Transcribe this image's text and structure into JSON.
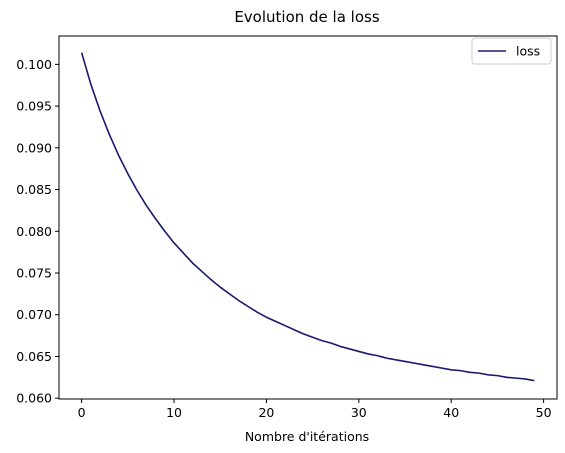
{
  "chart_data": {
    "type": "line",
    "title": "Evolution de la loss",
    "xlabel": "Nombre d'itérations",
    "ylabel": "",
    "xlim": [
      -2.45,
      51.45
    ],
    "ylim": [
      0.0599,
      0.1034
    ],
    "xticks": [
      0,
      10,
      20,
      30,
      40,
      50
    ],
    "yticks": [
      0.06,
      0.065,
      0.07,
      0.075,
      0.08,
      0.085,
      0.09,
      0.095,
      0.1
    ],
    "ytick_labels": [
      "0.060",
      "0.065",
      "0.070",
      "0.075",
      "0.080",
      "0.085",
      "0.090",
      "0.095",
      "0.100"
    ],
    "grid": false,
    "legend_position": "top-right",
    "series": [
      {
        "name": "loss",
        "color": "#191970",
        "x": [
          0,
          1,
          2,
          3,
          4,
          5,
          6,
          7,
          8,
          9,
          10,
          11,
          12,
          13,
          14,
          15,
          16,
          17,
          18,
          19,
          20,
          21,
          22,
          23,
          24,
          25,
          26,
          27,
          28,
          29,
          30,
          31,
          32,
          33,
          34,
          35,
          36,
          37,
          38,
          39,
          40,
          41,
          42,
          43,
          44,
          45,
          46,
          47,
          48,
          49
        ],
        "y": [
          0.1014,
          0.0976,
          0.0944,
          0.0916,
          0.0891,
          0.0869,
          0.0849,
          0.0831,
          0.0815,
          0.08,
          0.0786,
          0.0774,
          0.0762,
          0.0752,
          0.0742,
          0.0733,
          0.0725,
          0.0717,
          0.071,
          0.0703,
          0.0697,
          0.0692,
          0.0687,
          0.0682,
          0.0677,
          0.0673,
          0.0669,
          0.0666,
          0.0662,
          0.0659,
          0.0656,
          0.0653,
          0.0651,
          0.0648,
          0.0646,
          0.0644,
          0.0642,
          0.064,
          0.0638,
          0.0636,
          0.0634,
          0.0633,
          0.0631,
          0.063,
          0.0628,
          0.0627,
          0.0625,
          0.0624,
          0.0623,
          0.0621
        ]
      }
    ]
  }
}
